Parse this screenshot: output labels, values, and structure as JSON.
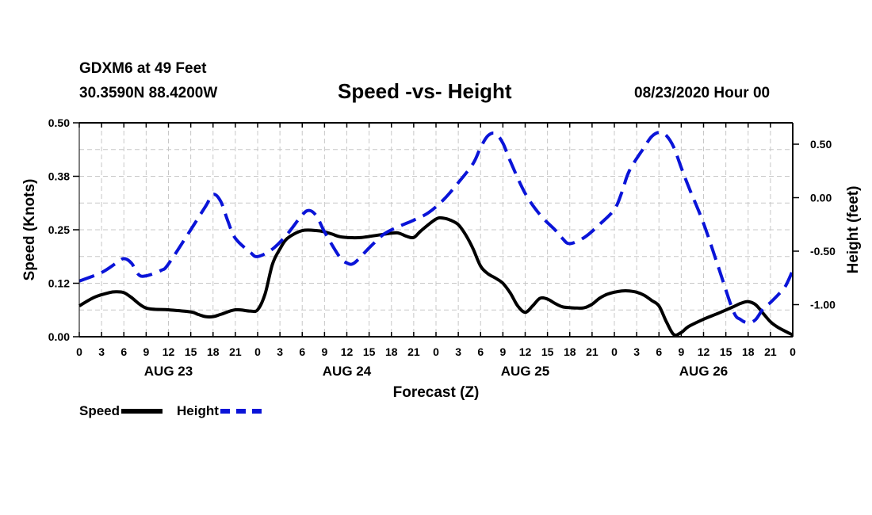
{
  "header": {
    "station": "GDXM6 at 49 Feet",
    "coords": "30.3590N 88.4200W",
    "title": "Speed -vs- Height",
    "datetime": "08/23/2020 Hour 00"
  },
  "legend": {
    "speed_label": "Speed",
    "height_label": "Height"
  },
  "colors": {
    "speed": "#000000",
    "height": "#0a14d8",
    "grid": "#c8c8c8"
  },
  "chart_data": {
    "type": "line",
    "title": "Speed -vs- Height",
    "xlabel": "Forecast (Z)",
    "ylabel_left": "Speed (Knots)",
    "ylabel_right": "Height (feet)",
    "x_range_hours": [
      0,
      96
    ],
    "x_ticks": [
      {
        "h": 0,
        "label": "0"
      },
      {
        "h": 3,
        "label": "3"
      },
      {
        "h": 6,
        "label": "6"
      },
      {
        "h": 9,
        "label": "9"
      },
      {
        "h": 12,
        "label": "12"
      },
      {
        "h": 15,
        "label": "15"
      },
      {
        "h": 18,
        "label": "18"
      },
      {
        "h": 21,
        "label": "21"
      },
      {
        "h": 24,
        "label": "0"
      },
      {
        "h": 27,
        "label": "3"
      },
      {
        "h": 30,
        "label": "6"
      },
      {
        "h": 33,
        "label": "9"
      },
      {
        "h": 36,
        "label": "12"
      },
      {
        "h": 39,
        "label": "15"
      },
      {
        "h": 42,
        "label": "18"
      },
      {
        "h": 45,
        "label": "21"
      },
      {
        "h": 48,
        "label": "0"
      },
      {
        "h": 51,
        "label": "3"
      },
      {
        "h": 54,
        "label": "6"
      },
      {
        "h": 57,
        "label": "9"
      },
      {
        "h": 60,
        "label": "12"
      },
      {
        "h": 63,
        "label": "15"
      },
      {
        "h": 66,
        "label": "18"
      },
      {
        "h": 69,
        "label": "21"
      },
      {
        "h": 72,
        "label": "0"
      },
      {
        "h": 75,
        "label": "3"
      },
      {
        "h": 78,
        "label": "6"
      },
      {
        "h": 81,
        "label": "9"
      },
      {
        "h": 84,
        "label": "12"
      },
      {
        "h": 87,
        "label": "15"
      },
      {
        "h": 90,
        "label": "18"
      },
      {
        "h": 93,
        "label": "21"
      },
      {
        "h": 96,
        "label": "0"
      }
    ],
    "date_labels": [
      {
        "h": 12,
        "label": "AUG 23"
      },
      {
        "h": 36,
        "label": "AUG 24"
      },
      {
        "h": 60,
        "label": "AUG 25"
      },
      {
        "h": 84,
        "label": "AUG 26"
      }
    ],
    "left_axis": {
      "min": 0,
      "max": 0.5,
      "ticks": [
        {
          "v": 0,
          "label": "0.00"
        },
        {
          "v": 0.125,
          "label": "0.12"
        },
        {
          "v": 0.25,
          "label": "0.25"
        },
        {
          "v": 0.375,
          "label": "0.38"
        },
        {
          "v": 0.5,
          "label": "0.50"
        }
      ]
    },
    "right_axis": {
      "min": -1.3,
      "max": 0.7,
      "ticks": [
        {
          "v": -1.0,
          "label": "-1.00"
        },
        {
          "v": -0.5,
          "label": "-0.50"
        },
        {
          "v": 0.0,
          "label": "0.00"
        },
        {
          "v": 0.5,
          "label": "0.50"
        }
      ]
    },
    "grid": true,
    "series": [
      {
        "name": "Speed",
        "axis": "left",
        "style": "solid",
        "x": [
          0,
          2,
          4,
          5,
          6,
          7,
          9,
          12,
          15,
          16,
          17,
          18,
          19,
          21,
          23,
          24,
          25,
          26,
          27,
          28,
          30,
          32,
          33,
          34,
          35,
          36,
          38,
          42,
          43,
          44,
          45,
          46,
          48,
          49,
          50,
          51,
          52,
          53,
          54,
          55,
          56,
          57,
          58,
          59,
          60,
          61,
          62,
          63,
          64,
          65,
          66,
          67,
          68,
          69,
          70,
          71,
          72,
          73,
          74,
          75,
          76,
          77,
          78,
          79,
          80,
          81,
          82,
          84,
          86,
          88,
          89,
          90,
          91,
          92,
          93,
          94,
          96
        ],
        "y": [
          0.072,
          0.092,
          0.103,
          0.105,
          0.103,
          0.092,
          0.067,
          0.063,
          0.058,
          0.052,
          0.047,
          0.047,
          0.052,
          0.063,
          0.06,
          0.063,
          0.1,
          0.17,
          0.205,
          0.23,
          0.248,
          0.248,
          0.245,
          0.24,
          0.234,
          0.232,
          0.232,
          0.242,
          0.242,
          0.235,
          0.232,
          0.248,
          0.275,
          0.277,
          0.272,
          0.262,
          0.238,
          0.205,
          0.165,
          0.147,
          0.137,
          0.125,
          0.102,
          0.072,
          0.057,
          0.072,
          0.09,
          0.088,
          0.078,
          0.07,
          0.068,
          0.067,
          0.068,
          0.076,
          0.09,
          0.099,
          0.104,
          0.107,
          0.107,
          0.104,
          0.097,
          0.085,
          0.072,
          0.035,
          0.005,
          0.01,
          0.024,
          0.041,
          0.055,
          0.07,
          0.078,
          0.082,
          0.075,
          0.055,
          0.035,
          0.022,
          0.004
        ]
      },
      {
        "name": "Height",
        "axis": "right",
        "style": "dashed",
        "x": [
          0,
          3,
          5,
          6,
          7,
          8,
          9,
          11,
          12,
          15,
          17,
          18,
          19,
          20,
          21,
          23,
          24,
          26,
          28,
          30,
          31,
          32,
          33,
          35,
          36,
          37,
          39,
          41,
          43,
          45,
          47,
          49,
          51,
          53,
          54,
          55,
          56,
          57,
          58,
          60,
          62,
          64,
          65,
          66,
          68,
          70,
          72,
          73,
          74,
          76,
          77,
          78,
          79,
          80,
          81,
          82,
          84,
          86,
          88,
          89,
          90,
          91,
          92,
          93,
          94,
          95,
          96
        ],
        "y": [
          -0.78,
          -0.7,
          -0.61,
          -0.57,
          -0.61,
          -0.72,
          -0.73,
          -0.68,
          -0.62,
          -0.3,
          -0.08,
          0.03,
          -0.03,
          -0.22,
          -0.38,
          -0.51,
          -0.55,
          -0.48,
          -0.34,
          -0.16,
          -0.12,
          -0.18,
          -0.32,
          -0.55,
          -0.61,
          -0.61,
          -0.47,
          -0.34,
          -0.27,
          -0.21,
          -0.14,
          -0.02,
          0.14,
          0.32,
          0.47,
          0.58,
          0.6,
          0.51,
          0.34,
          0.04,
          -0.16,
          -0.3,
          -0.38,
          -0.43,
          -0.37,
          -0.25,
          -0.11,
          0.05,
          0.25,
          0.47,
          0.57,
          0.61,
          0.58,
          0.47,
          0.28,
          0.1,
          -0.24,
          -0.65,
          -1.06,
          -1.14,
          -1.17,
          -1.14,
          -1.04,
          -0.98,
          -0.91,
          -0.83,
          -0.68
        ]
      }
    ]
  }
}
